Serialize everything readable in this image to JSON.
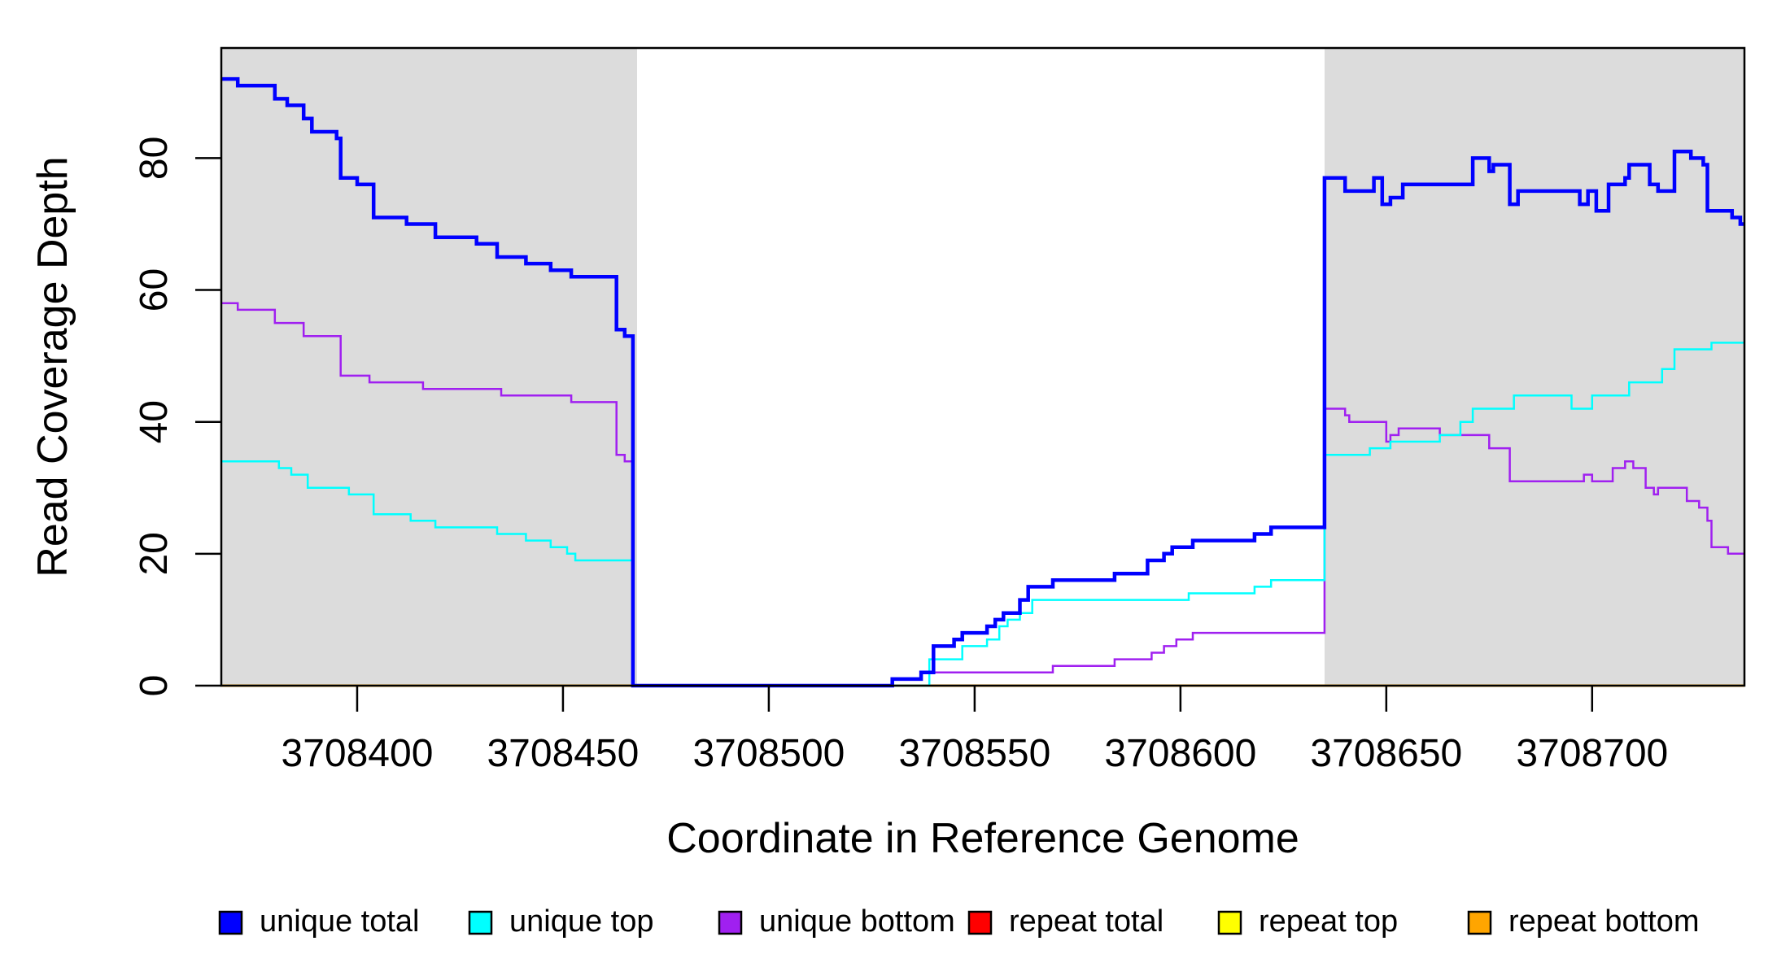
{
  "chart_data": {
    "type": "line",
    "subtype": "step-coverage-plot",
    "title": "",
    "xlabel": "Coordinate in Reference Genome",
    "ylabel": "Read Coverage Depth",
    "xlim": [
      3708367,
      3708737
    ],
    "ylim": [
      0,
      96.7
    ],
    "x_ticks": [
      3708400,
      3708450,
      3708500,
      3708550,
      3708600,
      3708650,
      3708700
    ],
    "x_tick_labels": [
      "3708400",
      "3708450",
      "3708500",
      "3708550",
      "3708600",
      "3708650",
      "3708700"
    ],
    "y_ticks": [
      0,
      20,
      40,
      60,
      80
    ],
    "y_tick_labels": [
      "0",
      "20",
      "40",
      "60",
      "80"
    ],
    "grid": false,
    "background_color": "#ffffff",
    "axis_color": "#000000",
    "shaded_regions": [
      {
        "name": "left-repeat-flank",
        "x0": 3708367,
        "x1": 3708468,
        "color": "#DCDCDC"
      },
      {
        "name": "right-repeat-flank",
        "x0": 3708635,
        "x1": 3708737,
        "color": "#DCDCDC"
      }
    ],
    "series": [
      {
        "name": "unique total",
        "color": "#0000FF",
        "line_width": 4.5,
        "steps": [
          [
            3708367,
            92
          ],
          [
            3708371,
            91
          ],
          [
            3708380,
            89
          ],
          [
            3708383,
            88
          ],
          [
            3708387,
            86
          ],
          [
            3708389,
            84
          ],
          [
            3708395,
            83
          ],
          [
            3708396,
            77
          ],
          [
            3708400,
            76
          ],
          [
            3708404,
            71
          ],
          [
            3708412,
            70
          ],
          [
            3708419,
            68
          ],
          [
            3708429,
            67
          ],
          [
            3708434,
            65
          ],
          [
            3708441,
            64
          ],
          [
            3708447,
            63
          ],
          [
            3708452,
            62
          ],
          [
            3708463,
            54
          ],
          [
            3708465,
            53
          ],
          [
            3708467,
            0
          ],
          [
            3708530,
            1
          ],
          [
            3708537,
            2
          ],
          [
            3708540,
            6
          ],
          [
            3708545,
            7
          ],
          [
            3708547,
            8
          ],
          [
            3708553,
            9
          ],
          [
            3708555,
            10
          ],
          [
            3708557,
            11
          ],
          [
            3708561,
            13
          ],
          [
            3708563,
            15
          ],
          [
            3708569,
            16
          ],
          [
            3708584,
            17
          ],
          [
            3708592,
            19
          ],
          [
            3708596,
            20
          ],
          [
            3708598,
            21
          ],
          [
            3708603,
            22
          ],
          [
            3708618,
            23
          ],
          [
            3708622,
            24
          ],
          [
            3708635,
            77
          ],
          [
            3708640,
            75
          ],
          [
            3708647,
            77
          ],
          [
            3708649,
            73
          ],
          [
            3708651,
            74
          ],
          [
            3708654,
            76
          ],
          [
            3708671,
            80
          ],
          [
            3708675,
            78
          ],
          [
            3708676,
            79
          ],
          [
            3708680,
            73
          ],
          [
            3708682,
            75
          ],
          [
            3708697,
            73
          ],
          [
            3708699,
            75
          ],
          [
            3708701,
            72
          ],
          [
            3708704,
            76
          ],
          [
            3708708,
            77
          ],
          [
            3708709,
            79
          ],
          [
            3708714,
            76
          ],
          [
            3708716,
            75
          ],
          [
            3708720,
            81
          ],
          [
            3708724,
            80
          ],
          [
            3708727,
            79
          ],
          [
            3708728,
            72
          ],
          [
            3708734,
            71
          ],
          [
            3708736,
            70
          ]
        ]
      },
      {
        "name": "unique top",
        "color": "#00FFFF",
        "line_width": 2.5,
        "steps": [
          [
            3708367,
            34
          ],
          [
            3708381,
            33
          ],
          [
            3708384,
            32
          ],
          [
            3708388,
            30
          ],
          [
            3708398,
            29
          ],
          [
            3708404,
            26
          ],
          [
            3708413,
            25
          ],
          [
            3708419,
            24
          ],
          [
            3708434,
            23
          ],
          [
            3708441,
            22
          ],
          [
            3708447,
            21
          ],
          [
            3708451,
            20
          ],
          [
            3708453,
            19
          ],
          [
            3708467,
            0
          ],
          [
            3708539,
            4
          ],
          [
            3708547,
            6
          ],
          [
            3708553,
            7
          ],
          [
            3708556,
            9
          ],
          [
            3708558,
            10
          ],
          [
            3708561,
            11
          ],
          [
            3708564,
            13
          ],
          [
            3708602,
            14
          ],
          [
            3708618,
            15
          ],
          [
            3708622,
            16
          ],
          [
            3708635,
            35
          ],
          [
            3708646,
            36
          ],
          [
            3708651,
            37
          ],
          [
            3708663,
            38
          ],
          [
            3708668,
            40
          ],
          [
            3708671,
            42
          ],
          [
            3708681,
            44
          ],
          [
            3708695,
            42
          ],
          [
            3708700,
            44
          ],
          [
            3708709,
            46
          ],
          [
            3708717,
            48
          ],
          [
            3708720,
            51
          ],
          [
            3708729,
            52
          ]
        ]
      },
      {
        "name": "unique bottom",
        "color": "#A020F0",
        "line_width": 2.5,
        "steps": [
          [
            3708367,
            58
          ],
          [
            3708371,
            57
          ],
          [
            3708380,
            55
          ],
          [
            3708387,
            53
          ],
          [
            3708396,
            47
          ],
          [
            3708403,
            46
          ],
          [
            3708416,
            45
          ],
          [
            3708435,
            44
          ],
          [
            3708452,
            43
          ],
          [
            3708463,
            35
          ],
          [
            3708465,
            34
          ],
          [
            3708467,
            0
          ],
          [
            3708530,
            1
          ],
          [
            3708537,
            2
          ],
          [
            3708569,
            3
          ],
          [
            3708584,
            4
          ],
          [
            3708593,
            5
          ],
          [
            3708596,
            6
          ],
          [
            3708599,
            7
          ],
          [
            3708603,
            8
          ],
          [
            3708635,
            42
          ],
          [
            3708640,
            41
          ],
          [
            3708641,
            40
          ],
          [
            3708650,
            37
          ],
          [
            3708651,
            38
          ],
          [
            3708653,
            39
          ],
          [
            3708663,
            38
          ],
          [
            3708675,
            36
          ],
          [
            3708680,
            31
          ],
          [
            3708698,
            32
          ],
          [
            3708700,
            31
          ],
          [
            3708705,
            33
          ],
          [
            3708708,
            34
          ],
          [
            3708710,
            33
          ],
          [
            3708713,
            30
          ],
          [
            3708715,
            29
          ],
          [
            3708716,
            30
          ],
          [
            3708723,
            28
          ],
          [
            3708726,
            27
          ],
          [
            3708728,
            25
          ],
          [
            3708729,
            21
          ],
          [
            3708733,
            20
          ]
        ]
      },
      {
        "name": "repeat total",
        "color": "#FF0000",
        "line_width": 3,
        "steps": [
          [
            3708367,
            0
          ]
        ]
      },
      {
        "name": "repeat top",
        "color": "#FFFF00",
        "line_width": 3,
        "steps": [
          [
            3708367,
            0
          ]
        ]
      },
      {
        "name": "repeat bottom",
        "color": "#FFA500",
        "line_width": 3,
        "steps": [
          [
            3708367,
            0
          ]
        ]
      }
    ],
    "draw_order": [
      "repeat total",
      "repeat top",
      "repeat bottom",
      "unique bottom",
      "unique top",
      "unique total"
    ],
    "legend": {
      "position": "bottom",
      "items": [
        {
          "label": "unique total",
          "color": "#0000FF"
        },
        {
          "label": "unique top",
          "color": "#00FFFF"
        },
        {
          "label": "unique bottom",
          "color": "#A020F0"
        },
        {
          "label": "repeat total",
          "color": "#FF0000"
        },
        {
          "label": "repeat top",
          "color": "#FFFF00"
        },
        {
          "label": "repeat bottom",
          "color": "#FFA500"
        }
      ]
    }
  }
}
